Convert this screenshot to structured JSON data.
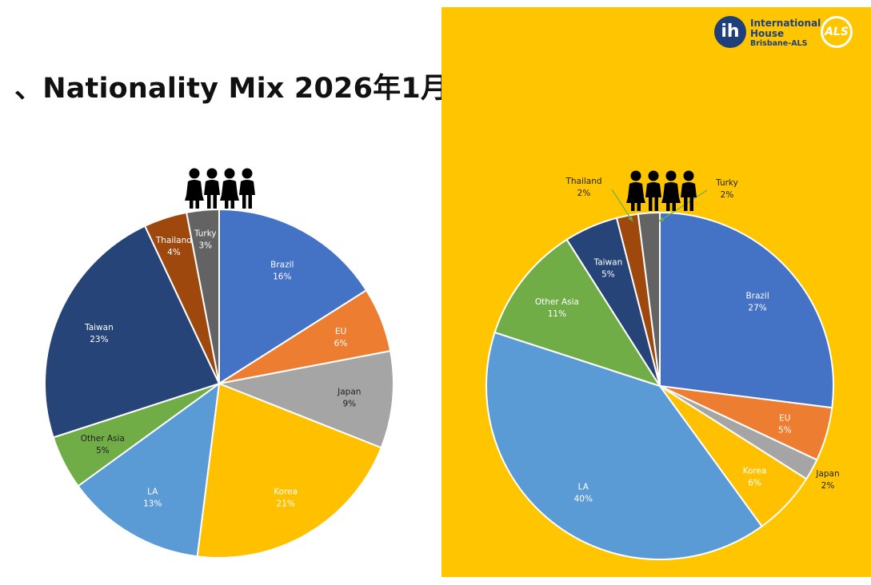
{
  "title": "、Nationality Mix 2026年1月",
  "logo": {
    "ih_mark": "ih",
    "name_line1": "International",
    "name_line2": "House",
    "sub": "Brisbane-ALS",
    "als_mark": "ALS"
  },
  "colors": {
    "panel": "#FFC600",
    "leader": "#70AD47",
    "Brazil": "#4472C4",
    "EU": "#ED7D31",
    "Japan": "#A5A5A5",
    "Korea": "#FFC000",
    "LA": "#5B9BD5",
    "Other Asia": "#70AD47",
    "Taiwan": "#264478",
    "Thailand": "#9E480E",
    "Turky": "#636363"
  },
  "chart_data": [
    {
      "type": "pie",
      "title": "",
      "categories": [
        "Brazil",
        "EU",
        "Japan",
        "Korea",
        "LA",
        "Other Asia",
        "Taiwan",
        "Thailand",
        "Turky"
      ],
      "values": [
        16,
        6,
        9,
        21,
        13,
        5,
        23,
        4,
        3
      ],
      "labels": [
        "16%",
        "6%",
        "9%",
        "21%",
        "13%",
        "5%",
        "23%",
        "4%",
        "3%"
      ],
      "icon": "people-group-icon"
    },
    {
      "type": "pie",
      "title": "",
      "categories": [
        "Brazil",
        "EU",
        "Japan",
        "Korea",
        "LA",
        "Other Asia",
        "Taiwan",
        "Thailand",
        "Turky"
      ],
      "values": [
        27,
        5,
        2,
        6,
        40,
        11,
        5,
        2,
        2
      ],
      "labels": [
        "27%",
        "5%",
        "2%",
        "6%",
        "40%",
        "11%",
        "5%",
        "2%",
        "2%"
      ],
      "icon": "people-group-icon"
    }
  ]
}
